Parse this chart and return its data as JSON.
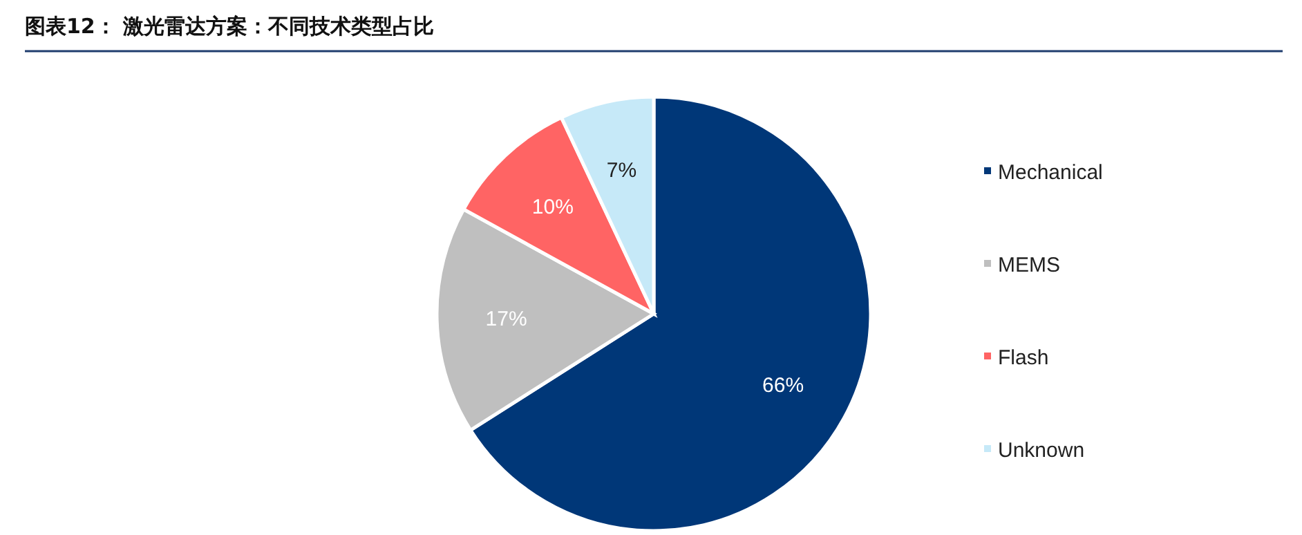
{
  "chart_data": {
    "type": "pie",
    "title": "图表12： 激光雷达方案：不同技术类型占比",
    "categories": [
      "Mechanical",
      "MEMS",
      "Flash",
      "Unknown"
    ],
    "values": [
      66,
      17,
      10,
      7
    ],
    "colors": [
      "#003778",
      "#bfbfbf",
      "#ff6464",
      "#c6e9f8"
    ],
    "value_labels": [
      "66%",
      "17%",
      "10%",
      "7%"
    ],
    "legend": "right"
  }
}
